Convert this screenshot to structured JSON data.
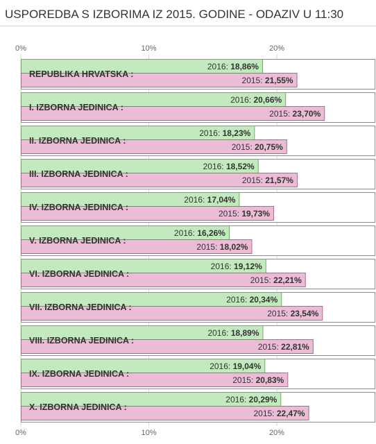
{
  "title": "USPOREDBA S IZBORIMA IZ 2015. GODINE - ODAZIV U 11:30",
  "colors": {
    "bar_2016": "#c3e9bf",
    "bar_2016_border": "#7aa674",
    "bar_2015": "#eabcd6",
    "bar_2015_border": "#a66e8e",
    "row_border": "#8c8c8c",
    "grid": "#d6d6d6"
  },
  "chart_data": {
    "type": "bar",
    "orientation": "horizontal",
    "title": "USPOREDBA S IZBORIMA IZ 2015. GODINE - ODAZIV U 11:30",
    "xlim": [
      0,
      27.7
    ],
    "ticks": [
      0,
      10,
      20
    ],
    "tick_labels": [
      "0%",
      "10%",
      "20%"
    ],
    "grid": true,
    "categories": [
      "REPUBLIKA HRVATSKA :",
      "I. IZBORNA JEDINICA :",
      "II. IZBORNA JEDINICA :",
      "III. IZBORNA JEDINICA :",
      "IV. IZBORNA JEDINICA :",
      "V. IZBORNA JEDINICA :",
      "VI. IZBORNA JEDINICA :",
      "VII. IZBORNA JEDINICA :",
      "VIII. IZBORNA JEDINICA :",
      "IX. IZBORNA JEDINICA :",
      "X. IZBORNA JEDINICA :"
    ],
    "series": [
      {
        "name": "2016",
        "values": [
          18.86,
          20.66,
          18.23,
          18.52,
          17.04,
          16.26,
          19.12,
          20.34,
          18.89,
          19.04,
          20.29
        ],
        "labels": [
          "18,86%",
          "20,66%",
          "18,23%",
          "18,52%",
          "17,04%",
          "16,26%",
          "19,12%",
          "20,34%",
          "18,89%",
          "19,04%",
          "20,29%"
        ]
      },
      {
        "name": "2015",
        "values": [
          21.55,
          23.7,
          20.75,
          21.57,
          19.73,
          18.02,
          22.21,
          23.54,
          22.81,
          20.83,
          22.47
        ],
        "labels": [
          "21,55%",
          "23,70%",
          "20,75%",
          "21,57%",
          "19,73%",
          "18,02%",
          "22,21%",
          "23,54%",
          "22,81%",
          "20,83%",
          "22,47%"
        ]
      }
    ]
  }
}
